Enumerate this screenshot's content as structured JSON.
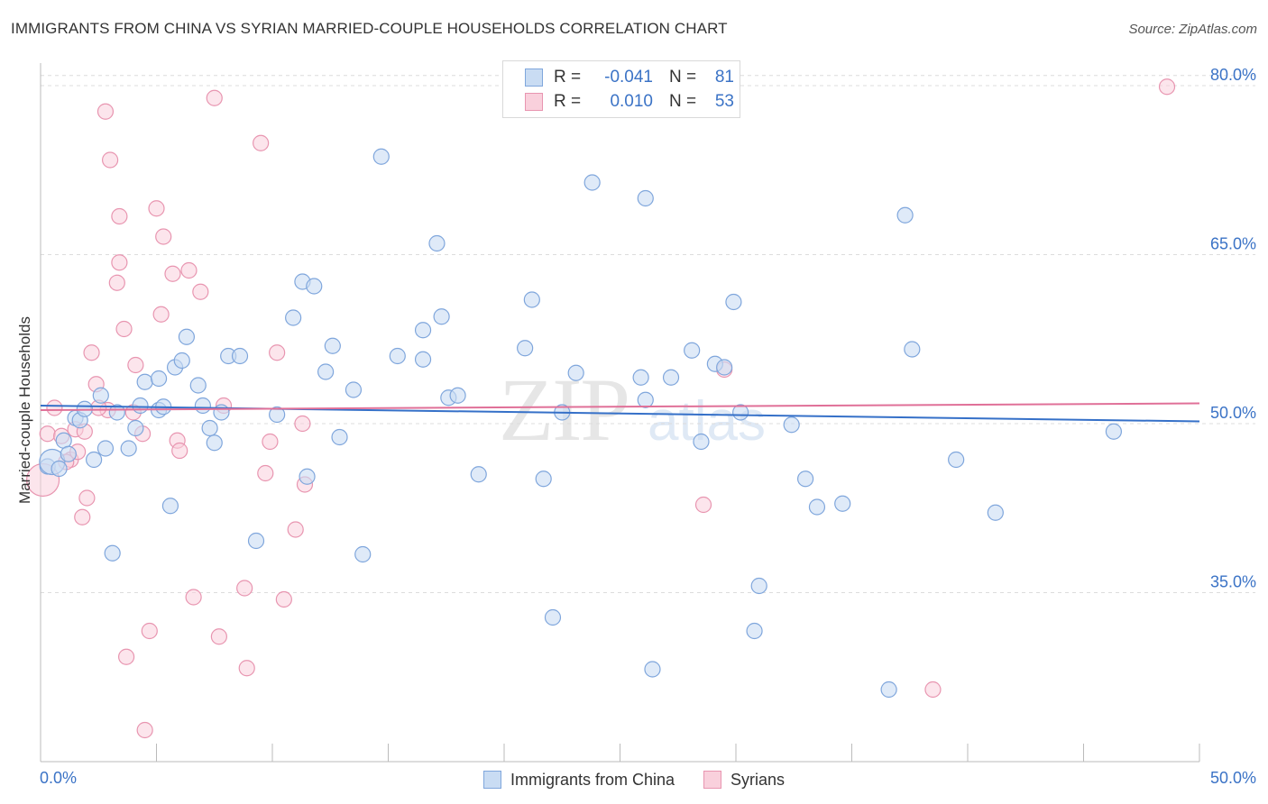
{
  "title": "IMMIGRANTS FROM CHINA VS SYRIAN MARRIED-COUPLE HOUSEHOLDS CORRELATION CHART",
  "source": "Source: ZipAtlas.com",
  "colors": {
    "blue_fill": "#c9dcf3",
    "blue_stroke": "#7fa6dc",
    "blue_line": "#3570c8",
    "pink_fill": "#f9d0dc",
    "pink_stroke": "#e895b0",
    "pink_line": "#e07098",
    "tick_text": "#3b73c6",
    "grid": "#dcdcdc"
  },
  "legend_top": {
    "rows": [
      {
        "r_label": "R =",
        "r_value": "-0.041",
        "n_label": "N =",
        "n_value": "81"
      },
      {
        "r_label": "R =",
        "r_value": "0.010",
        "n_label": "N =",
        "n_value": "53"
      }
    ]
  },
  "legend_bottom": [
    "Immigrants from China",
    "Syrians"
  ],
  "chart_data": {
    "type": "scatter",
    "title": "IMMIGRANTS FROM CHINA VS SYRIAN MARRIED-COUPLE HOUSEHOLDS CORRELATION CHART",
    "xlabel": "",
    "ylabel": "Married-couple Households",
    "xlim": [
      0,
      50
    ],
    "ylim": [
      20,
      82
    ],
    "x_tick_labels": [
      "0.0%",
      "50.0%"
    ],
    "y_ticks": [
      35,
      50,
      65,
      80
    ],
    "y_tick_labels": [
      "35.0%",
      "50.0%",
      "65.0%",
      "80.0%"
    ],
    "grid": true,
    "legend": "bottom-center",
    "series": [
      {
        "name": "Immigrants from China",
        "stats": {
          "R": -0.041,
          "N": 81
        },
        "trend": {
          "x": [
            0,
            50
          ],
          "y": [
            51.6,
            50.2
          ]
        },
        "points": [
          [
            0.3,
            46.2
          ],
          [
            0.5,
            46.6
          ],
          [
            0.8,
            46.0
          ],
          [
            1.0,
            48.5
          ],
          [
            1.2,
            47.3
          ],
          [
            1.5,
            50.5
          ],
          [
            1.7,
            50.3
          ],
          [
            1.9,
            51.3
          ],
          [
            2.3,
            46.8
          ],
          [
            2.6,
            52.5
          ],
          [
            2.8,
            47.8
          ],
          [
            3.1,
            38.5
          ],
          [
            3.3,
            51.0
          ],
          [
            3.8,
            47.8
          ],
          [
            4.1,
            49.6
          ],
          [
            4.3,
            51.6
          ],
          [
            4.5,
            53.7
          ],
          [
            5.1,
            51.2
          ],
          [
            5.3,
            51.5
          ],
          [
            5.1,
            54.0
          ],
          [
            5.6,
            42.7
          ],
          [
            5.8,
            55.0
          ],
          [
            6.1,
            55.6
          ],
          [
            6.3,
            57.7
          ],
          [
            6.8,
            53.4
          ],
          [
            7.0,
            51.6
          ],
          [
            7.3,
            49.6
          ],
          [
            7.8,
            51.0
          ],
          [
            7.5,
            48.3
          ],
          [
            8.1,
            56.0
          ],
          [
            8.6,
            56.0
          ],
          [
            10.2,
            50.8
          ],
          [
            9.3,
            39.6
          ],
          [
            11.5,
            45.3
          ],
          [
            10.9,
            59.4
          ],
          [
            11.3,
            62.6
          ],
          [
            11.8,
            62.2
          ],
          [
            14.7,
            73.7
          ],
          [
            12.3,
            54.6
          ],
          [
            12.9,
            48.8
          ],
          [
            12.6,
            56.9
          ],
          [
            13.5,
            53.0
          ],
          [
            13.9,
            38.4
          ],
          [
            17.1,
            66.0
          ],
          [
            17.3,
            59.5
          ],
          [
            17.6,
            52.3
          ],
          [
            16.5,
            58.3
          ],
          [
            15.4,
            56.0
          ],
          [
            16.5,
            55.7
          ],
          [
            18.0,
            52.5
          ],
          [
            18.9,
            45.5
          ],
          [
            20.9,
            56.7
          ],
          [
            21.2,
            61.0
          ],
          [
            21.7,
            45.1
          ],
          [
            22.1,
            32.8
          ],
          [
            22.5,
            51.0
          ],
          [
            23.1,
            54.5
          ],
          [
            23.8,
            71.4
          ],
          [
            26.1,
            70.0
          ],
          [
            25.9,
            54.1
          ],
          [
            26.1,
            52.1
          ],
          [
            26.4,
            28.2
          ],
          [
            27.2,
            54.1
          ],
          [
            28.1,
            56.5
          ],
          [
            28.5,
            48.4
          ],
          [
            29.1,
            55.3
          ],
          [
            29.5,
            55.0
          ],
          [
            29.9,
            60.8
          ],
          [
            30.8,
            31.6
          ],
          [
            30.2,
            51.0
          ],
          [
            31.0,
            35.6
          ],
          [
            32.4,
            49.9
          ],
          [
            33.0,
            45.1
          ],
          [
            33.5,
            42.6
          ],
          [
            34.6,
            42.9
          ],
          [
            36.6,
            26.4
          ],
          [
            37.3,
            68.5
          ],
          [
            37.6,
            56.6
          ],
          [
            39.5,
            46.8
          ],
          [
            41.2,
            42.1
          ],
          [
            46.3,
            49.3
          ]
        ]
      },
      {
        "name": "Syrians",
        "stats": {
          "R": 0.01,
          "N": 53
        },
        "trend": {
          "x": [
            0,
            50
          ],
          "y": [
            51.2,
            51.8
          ]
        },
        "points": [
          [
            0.1,
            45.0
          ],
          [
            0.3,
            49.1
          ],
          [
            0.6,
            51.4
          ],
          [
            0.9,
            48.9
          ],
          [
            1.3,
            46.8
          ],
          [
            1.1,
            46.6
          ],
          [
            1.5,
            49.5
          ],
          [
            1.6,
            47.5
          ],
          [
            1.8,
            41.7
          ],
          [
            2.0,
            43.4
          ],
          [
            1.9,
            49.3
          ],
          [
            2.2,
            56.3
          ],
          [
            2.4,
            53.5
          ],
          [
            2.9,
            51.2
          ],
          [
            2.8,
            77.7
          ],
          [
            3.0,
            73.4
          ],
          [
            3.4,
            68.4
          ],
          [
            3.3,
            62.5
          ],
          [
            3.4,
            64.3
          ],
          [
            3.6,
            58.4
          ],
          [
            3.7,
            29.3
          ],
          [
            4.0,
            51.0
          ],
          [
            4.1,
            55.2
          ],
          [
            4.4,
            49.1
          ],
          [
            4.5,
            22.8
          ],
          [
            4.7,
            31.6
          ],
          [
            5.0,
            69.1
          ],
          [
            5.2,
            59.7
          ],
          [
            5.3,
            66.6
          ],
          [
            5.7,
            63.3
          ],
          [
            5.9,
            48.5
          ],
          [
            6.0,
            47.6
          ],
          [
            6.4,
            63.6
          ],
          [
            6.6,
            34.6
          ],
          [
            6.9,
            61.7
          ],
          [
            7.5,
            78.9
          ],
          [
            7.7,
            31.1
          ],
          [
            7.9,
            51.6
          ],
          [
            8.8,
            35.4
          ],
          [
            8.9,
            28.3
          ],
          [
            9.5,
            74.9
          ],
          [
            9.7,
            45.6
          ],
          [
            9.9,
            48.4
          ],
          [
            10.2,
            56.3
          ],
          [
            10.5,
            34.4
          ],
          [
            11.0,
            40.6
          ],
          [
            11.3,
            50.0
          ],
          [
            11.4,
            44.6
          ],
          [
            28.6,
            42.8
          ],
          [
            29.5,
            54.8
          ],
          [
            38.5,
            26.4
          ],
          [
            48.6,
            79.9
          ],
          [
            2.5,
            51.4
          ]
        ]
      }
    ]
  }
}
